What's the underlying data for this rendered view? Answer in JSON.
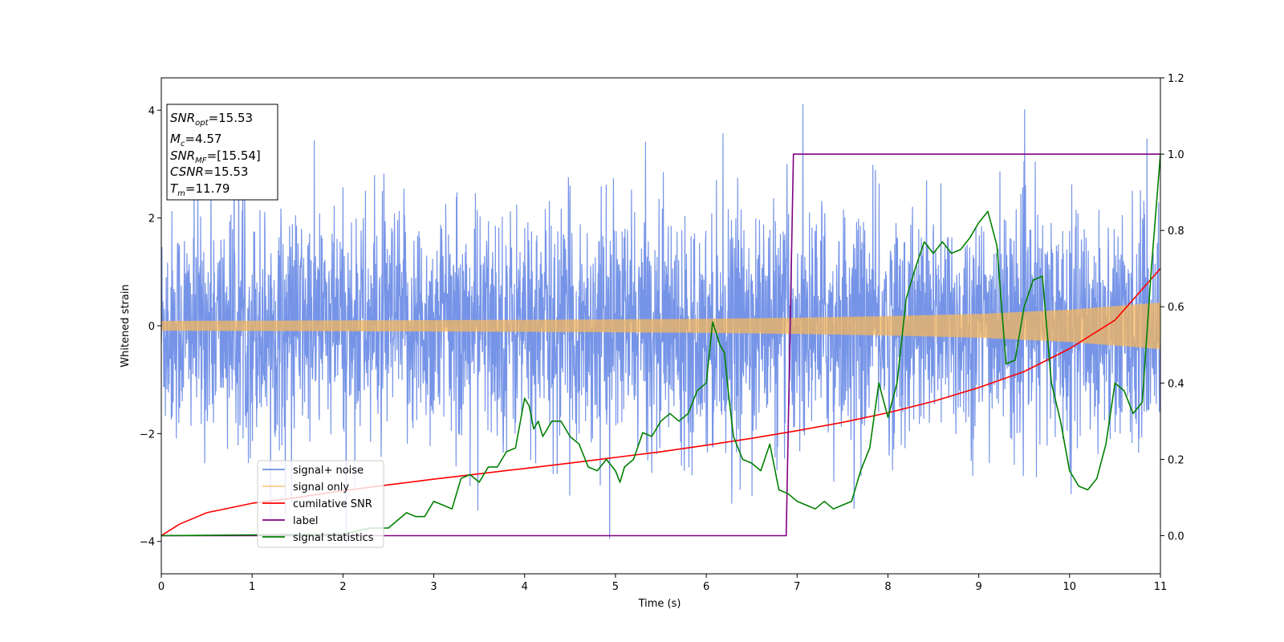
{
  "chart_data": {
    "type": "line",
    "title": "",
    "xlabel": "Time (s)",
    "ylabel": "Whitened strain",
    "xlim": [
      0,
      11
    ],
    "ylim_left": [
      -4.6,
      4.6
    ],
    "ylim_right": [
      -0.1,
      1.2
    ],
    "xticks": [
      0,
      1,
      2,
      3,
      4,
      5,
      6,
      7,
      8,
      9,
      10,
      11
    ],
    "xtick_labels": [
      "0",
      "1",
      "2",
      "3",
      "4",
      "5",
      "6",
      "7",
      "8",
      "9",
      "10",
      "11"
    ],
    "yticks_left": [
      -4,
      -2,
      0,
      2,
      4
    ],
    "ytick_labels_left": [
      "−4",
      "−2",
      "0",
      "2",
      "4"
    ],
    "yticks_right": [
      0.0,
      0.2,
      0.4,
      0.6,
      0.8,
      1.0,
      1.2
    ],
    "ytick_labels_right": [
      "0.0",
      "0.2",
      "0.4",
      "0.6",
      "0.8",
      "1.0",
      "1.2"
    ],
    "legend_position": "lower-left",
    "series": [
      {
        "name": "signal+ noise",
        "axis": "left",
        "color": "#6f8ee6",
        "kind": "noise",
        "envelope": 2.1,
        "peak_max": 4.2
      },
      {
        "name": "signal only",
        "axis": "left",
        "color": "#f5b75c",
        "kind": "chirp",
        "amplitude_t": [
          0,
          2,
          4,
          6,
          7,
          8,
          9,
          10,
          11
        ],
        "amplitude": [
          0.09,
          0.1,
          0.11,
          0.13,
          0.15,
          0.18,
          0.22,
          0.3,
          0.43
        ]
      },
      {
        "name": "cumilative SNR",
        "axis": "right",
        "color": "#ff0000",
        "x": [
          0,
          0.2,
          0.5,
          1,
          1.5,
          2,
          2.5,
          3,
          3.5,
          4,
          4.5,
          5,
          5.5,
          6,
          6.5,
          7,
          7.5,
          8,
          8.5,
          9,
          9.5,
          10,
          10.5,
          11
        ],
        "y": [
          0.0,
          0.03,
          0.06,
          0.085,
          0.1,
          0.118,
          0.133,
          0.148,
          0.162,
          0.176,
          0.19,
          0.205,
          0.22,
          0.237,
          0.255,
          0.275,
          0.297,
          0.322,
          0.352,
          0.388,
          0.43,
          0.49,
          0.565,
          0.7
        ]
      },
      {
        "name": "label",
        "axis": "right",
        "color": "#800080",
        "x": [
          0,
          6.88,
          6.96,
          11
        ],
        "y": [
          0.0,
          0.0,
          1.0,
          1.0
        ]
      },
      {
        "name": "signal statistics",
        "axis": "right",
        "color": "#008000",
        "x": [
          0,
          1,
          2,
          2.3,
          2.5,
          2.6,
          2.7,
          2.8,
          2.9,
          3.0,
          3.1,
          3.2,
          3.3,
          3.4,
          3.5,
          3.6,
          3.7,
          3.8,
          3.9,
          4.0,
          4.05,
          4.1,
          4.15,
          4.2,
          4.3,
          4.4,
          4.45,
          4.5,
          4.6,
          4.7,
          4.8,
          4.9,
          5.0,
          5.05,
          5.1,
          5.2,
          5.3,
          5.4,
          5.5,
          5.6,
          5.7,
          5.8,
          5.9,
          6.0,
          6.07,
          6.15,
          6.2,
          6.25,
          6.3,
          6.4,
          6.5,
          6.6,
          6.7,
          6.8,
          6.9,
          7.0,
          7.1,
          7.2,
          7.3,
          7.4,
          7.5,
          7.6,
          7.7,
          7.8,
          7.9,
          8.0,
          8.1,
          8.2,
          8.3,
          8.4,
          8.5,
          8.6,
          8.7,
          8.8,
          8.9,
          9.0,
          9.1,
          9.2,
          9.3,
          9.4,
          9.5,
          9.6,
          9.7,
          9.8,
          9.9,
          10.0,
          10.1,
          10.2,
          10.3,
          10.4,
          10.5,
          10.6,
          10.7,
          10.8,
          10.9,
          11.0
        ],
        "y": [
          0.0,
          0.002,
          0.004,
          0.02,
          0.02,
          0.04,
          0.06,
          0.05,
          0.05,
          0.09,
          0.08,
          0.07,
          0.15,
          0.16,
          0.14,
          0.18,
          0.18,
          0.22,
          0.23,
          0.36,
          0.34,
          0.28,
          0.3,
          0.26,
          0.3,
          0.3,
          0.28,
          0.26,
          0.24,
          0.18,
          0.17,
          0.2,
          0.17,
          0.14,
          0.18,
          0.2,
          0.27,
          0.26,
          0.3,
          0.32,
          0.3,
          0.32,
          0.38,
          0.4,
          0.56,
          0.5,
          0.48,
          0.36,
          0.26,
          0.2,
          0.19,
          0.17,
          0.24,
          0.12,
          0.11,
          0.09,
          0.08,
          0.07,
          0.09,
          0.07,
          0.08,
          0.09,
          0.17,
          0.23,
          0.4,
          0.31,
          0.4,
          0.62,
          0.7,
          0.77,
          0.74,
          0.77,
          0.74,
          0.75,
          0.78,
          0.82,
          0.85,
          0.76,
          0.45,
          0.46,
          0.6,
          0.67,
          0.68,
          0.4,
          0.3,
          0.17,
          0.13,
          0.12,
          0.15,
          0.24,
          0.4,
          0.38,
          0.32,
          0.35,
          0.7,
          1.0
        ]
      }
    ]
  },
  "info_box": {
    "snr_opt": {
      "base": "SNR",
      "sub": "opt",
      "value": "=15.53"
    },
    "mc": {
      "base": "M",
      "sub": "c",
      "value": "=4.57"
    },
    "snr_mf": {
      "base": "SNR",
      "sub": "MF",
      "value": "=[15.54]"
    },
    "csnr": {
      "base": "CSNR",
      "value": "=15.53"
    },
    "tm": {
      "base": "T",
      "sub": "m",
      "value": "=11.79"
    }
  }
}
